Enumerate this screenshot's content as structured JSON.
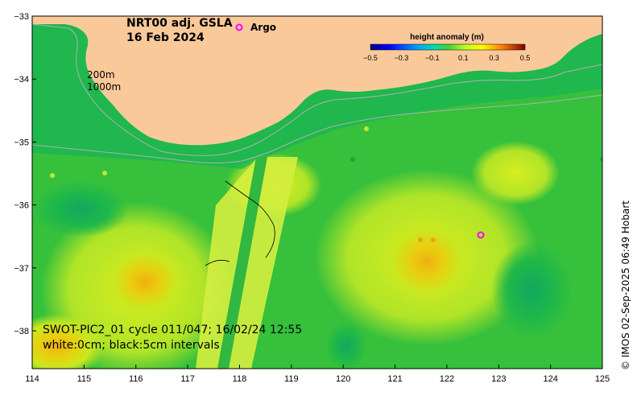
{
  "map": {
    "title_line1": "NRT00 adj. GSLA",
    "title_line2": "16 Feb 2024",
    "legend_label": "Argo",
    "contour_label_200": "200m",
    "contour_label_1000": "1000m",
    "swot_line1": "SWOT-PIC2_01 cycle 011/047; 16/02/24 12:55",
    "swot_line2": "white:0cm; black:5cm intervals",
    "credit": "© IMOS 02-Sep-2025 06:49 Hobart",
    "x_ticks": [
      "114",
      "115",
      "116",
      "117",
      "118",
      "119",
      "120",
      "121",
      "122",
      "123",
      "124",
      "125"
    ],
    "y_ticks": [
      "−33",
      "−34",
      "−35",
      "−36",
      "−37",
      "−38"
    ],
    "colorbar": {
      "title": "height anomaly (m)",
      "ticks": [
        "−0.5",
        "−0.3",
        "−0.1",
        "0.1",
        "0.3",
        "0.5"
      ]
    },
    "colors": {
      "land": "#f9c99a",
      "ocean_base": "#32c23c",
      "argo_marker": "#ff00ff"
    }
  }
}
